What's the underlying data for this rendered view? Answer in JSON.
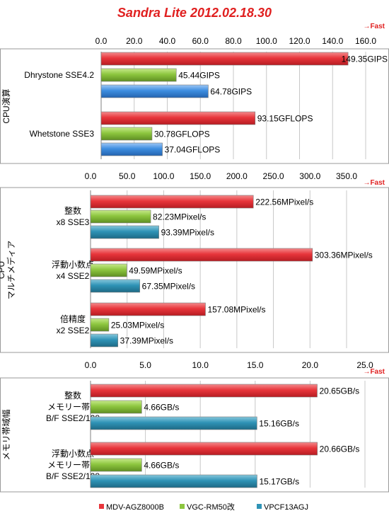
{
  "title": "Sandra Lite 2012.02.18.30",
  "fast_label": "→Fast",
  "colors": {
    "MDV-AGZ8000B": "#e8353b",
    "VGC-RM50改": "#8dc63f",
    "VPCF13AGJ": "#3e8ee0",
    "title": "#e02020",
    "fast": "#e02020"
  },
  "legend": [
    "MDV-AGZ8000B",
    "VGC-RM50改",
    "VPCF13AGJ"
  ],
  "chart_data": [
    {
      "type": "bar",
      "orientation": "horizontal",
      "group_label": "CPU演算",
      "xlim": [
        0,
        160
      ],
      "ticks": [
        "0.0",
        "20.0",
        "40.0",
        "60.0",
        "80.0",
        "100.0",
        "120.0",
        "140.0",
        "160.0"
      ],
      "categories": [
        {
          "lines": [
            "Dhrystone SSE4.2"
          ],
          "bars": [
            {
              "series": "MDV-AGZ8000B",
              "value": 149.35,
              "label": "149.35GIPS"
            },
            {
              "series": "VGC-RM50改",
              "value": 45.44,
              "label": "45.44GIPS"
            },
            {
              "series": "VPCF13AGJ",
              "value": 64.78,
              "label": "64.78GIPS"
            }
          ]
        },
        {
          "lines": [
            "Whetstone SSE3"
          ],
          "bars": [
            {
              "series": "MDV-AGZ8000B",
              "value": 93.15,
              "label": "93.15GFLOPS"
            },
            {
              "series": "VGC-RM50改",
              "value": 30.78,
              "label": "30.78GFLOPS"
            },
            {
              "series": "VPCF13AGJ",
              "value": 37.04,
              "label": "37.04GFLOPS"
            }
          ]
        }
      ]
    },
    {
      "type": "bar",
      "orientation": "horizontal",
      "group_label": "CPU\nマルチメディア",
      "xlim": [
        0,
        350
      ],
      "ticks": [
        "0.0",
        "50.0",
        "100.0",
        "150.0",
        "200.0",
        "250.0",
        "300.0",
        "350.0"
      ],
      "categories": [
        {
          "lines": [
            "整数",
            "x8 SSE3"
          ],
          "bars": [
            {
              "series": "MDV-AGZ8000B",
              "value": 222.56,
              "label": "222.56MPixel/s"
            },
            {
              "series": "VGC-RM50改",
              "value": 82.23,
              "label": "82.23MPixel/s"
            },
            {
              "series": "VPCF13AGJ",
              "value": 93.39,
              "label": "93.39MPixel/s"
            }
          ]
        },
        {
          "lines": [
            "浮動小数点",
            "x4 SSE2"
          ],
          "bars": [
            {
              "series": "MDV-AGZ8000B",
              "value": 303.36,
              "label": "303.36MPixel/s"
            },
            {
              "series": "VGC-RM50改",
              "value": 49.59,
              "label": "49.59MPixel/s"
            },
            {
              "series": "VPCF13AGJ",
              "value": 67.35,
              "label": "67.35MPixel/s"
            }
          ]
        },
        {
          "lines": [
            "倍精度",
            "x2 SSE2"
          ],
          "bars": [
            {
              "series": "MDV-AGZ8000B",
              "value": 157.08,
              "label": "157.08MPixel/s"
            },
            {
              "series": "VGC-RM50改",
              "value": 25.03,
              "label": "25.03MPixel/s"
            },
            {
              "series": "VPCF13AGJ",
              "value": 37.39,
              "label": "37.39MPixel/s"
            }
          ]
        }
      ]
    },
    {
      "type": "bar",
      "orientation": "horizontal",
      "group_label": "メモリ帯域幅",
      "xlim": [
        0,
        25
      ],
      "ticks": [
        "0.0",
        "5.0",
        "10.0",
        "15.0",
        "20.0",
        "25.0"
      ],
      "categories": [
        {
          "lines": [
            "整数",
            "メモリー帯域",
            "B/F SSE2/128"
          ],
          "bars": [
            {
              "series": "MDV-AGZ8000B",
              "value": 20.65,
              "label": "20.65GB/s"
            },
            {
              "series": "VGC-RM50改",
              "value": 4.66,
              "label": "4.66GB/s"
            },
            {
              "series": "VPCF13AGJ",
              "value": 15.16,
              "label": "15.16GB/s"
            }
          ]
        },
        {
          "lines": [
            "浮動小数点",
            "メモリー帯域",
            "B/F SSE2/128"
          ],
          "bars": [
            {
              "series": "MDV-AGZ8000B",
              "value": 20.66,
              "label": "20.66GB/s"
            },
            {
              "series": "VGC-RM50改",
              "value": 4.66,
              "label": "4.66GB/s"
            },
            {
              "series": "VPCF13AGJ",
              "value": 15.17,
              "label": "15.17GB/s"
            }
          ]
        }
      ]
    }
  ]
}
